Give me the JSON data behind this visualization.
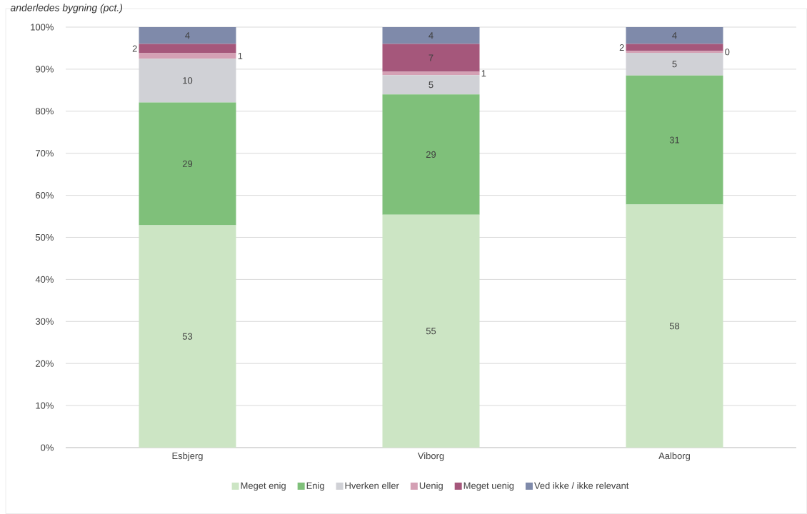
{
  "chart_data": {
    "type": "bar",
    "title": "*anderledes bygning (pct.)*",
    "stacked": true,
    "categories": [
      "Esbjerg",
      "Viborg",
      "Aalborg"
    ],
    "series": [
      {
        "name": "Meget enig",
        "color": "#cce5c4",
        "values": [
          52.9,
          55.4,
          57.8
        ],
        "value_labels": [
          "53",
          "55",
          "58"
        ]
      },
      {
        "name": "Enig",
        "color": "#7fc07a",
        "values": [
          29.2,
          28.6,
          30.7
        ],
        "value_labels": [
          "29",
          "29",
          "31"
        ]
      },
      {
        "name": "Hverken eller",
        "color": "#d0d1d6",
        "values": [
          10.4,
          4.6,
          5.4
        ],
        "value_labels": [
          "10",
          "5",
          "5"
        ]
      },
      {
        "name": "Uenig",
        "color": "#d4a0b4",
        "values": [
          1.3,
          0.8,
          0.4
        ],
        "value_labels": [
          "1",
          "1",
          "0"
        ]
      },
      {
        "name": "Meget uenig",
        "color": "#a5577b",
        "values": [
          2.2,
          6.6,
          1.7
        ],
        "value_labels": [
          "2",
          "7",
          "2"
        ]
      },
      {
        "name": "Ved ikke / ikke relevant",
        "color": "#7f8aaa",
        "values": [
          4,
          4,
          4
        ],
        "value_labels": [
          "4",
          "4",
          "4"
        ]
      }
    ],
    "ylim": [
      0,
      100
    ],
    "yticks": [
      {
        "value": 0,
        "label": "0%"
      },
      {
        "value": 10,
        "label": "10%"
      },
      {
        "value": 20,
        "label": "20%"
      },
      {
        "value": 30,
        "label": "30%"
      },
      {
        "value": 40,
        "label": "40%"
      },
      {
        "value": 50,
        "label": "50%"
      },
      {
        "value": 60,
        "label": "60%"
      },
      {
        "value": 70,
        "label": "70%"
      },
      {
        "value": 80,
        "label": "80%"
      },
      {
        "value": 90,
        "label": "90%"
      },
      {
        "value": 100,
        "label": "100%"
      }
    ],
    "grid": "y",
    "legend": "bottom"
  }
}
